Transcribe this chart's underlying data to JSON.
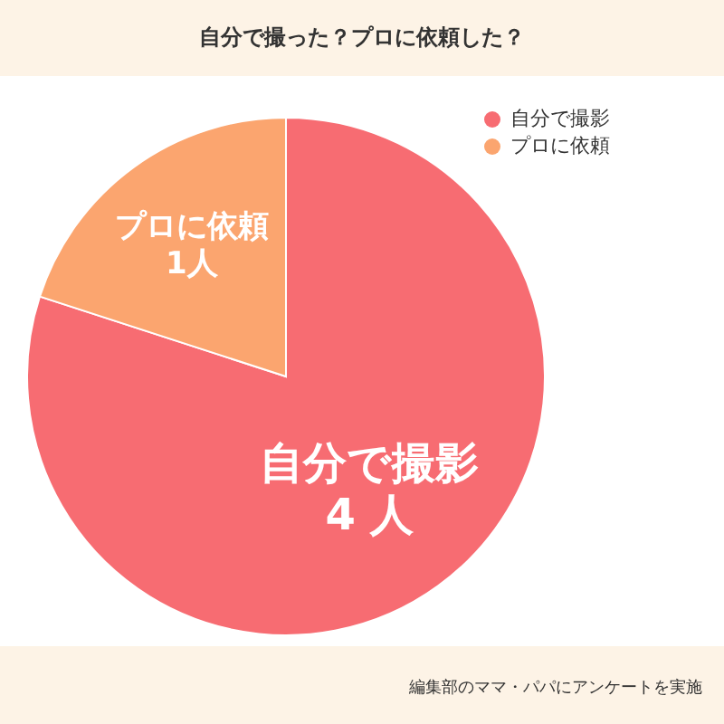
{
  "chart_data": {
    "type": "pie",
    "title": "自分で撮った？プロに依頼した？",
    "categories": [
      "自分で撮影",
      "プロに依頼"
    ],
    "values": [
      4,
      1
    ],
    "colors": [
      "#f76c72",
      "#fba56f"
    ],
    "value_labels": [
      "4 人",
      "1人"
    ],
    "legend": "top right",
    "annotations": [
      "編集部のママ・パパにアンケートを実施"
    ]
  }
}
